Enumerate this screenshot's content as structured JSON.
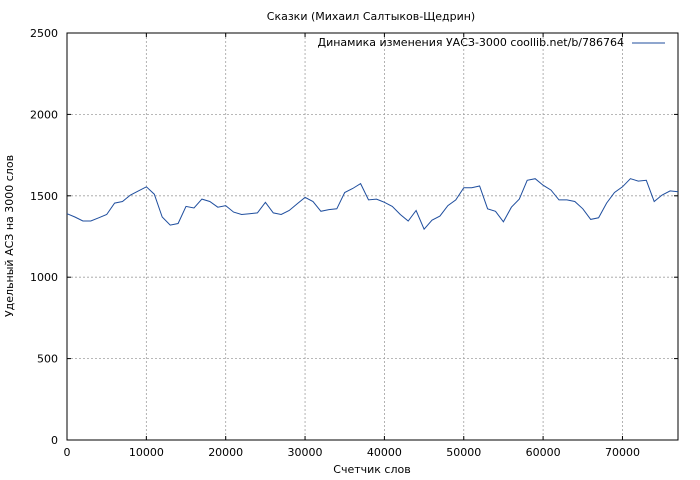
{
  "chart_data": {
    "type": "line",
    "title": "Сказки (Михаил Салтыков-Щедрин)",
    "xlabel": "Счетчик слов",
    "ylabel": "Удельный АСЗ на 3000 слов",
    "xlim": [
      0,
      77000
    ],
    "ylim": [
      0,
      2500
    ],
    "xticks": [
      0,
      10000,
      20000,
      30000,
      40000,
      50000,
      60000,
      70000
    ],
    "yticks": [
      0,
      500,
      1000,
      1500,
      2000,
      2500
    ],
    "grid": true,
    "legend_position": "top-right",
    "series": [
      {
        "name": "Динамика изменения УАСЗ-3000 coollib.net/b/786764",
        "color": "#1f4e9e",
        "x": [
          0,
          1000,
          2000,
          3000,
          4000,
          5000,
          6000,
          7000,
          8000,
          9000,
          10000,
          11000,
          12000,
          13000,
          14000,
          15000,
          16000,
          17000,
          18000,
          19000,
          20000,
          21000,
          22000,
          23000,
          24000,
          25000,
          26000,
          27000,
          28000,
          29000,
          30000,
          31000,
          32000,
          33000,
          34000,
          35000,
          36000,
          37000,
          38000,
          39000,
          40000,
          41000,
          42000,
          43000,
          44000,
          45000,
          46000,
          47000,
          48000,
          49000,
          50000,
          51000,
          52000,
          53000,
          54000,
          55000,
          56000,
          57000,
          58000,
          59000,
          60000,
          61000,
          62000,
          63000,
          64000,
          65000,
          66000,
          67000,
          68000,
          69000,
          70000,
          71000,
          72000,
          73000,
          74000,
          75000,
          76000,
          77000
        ],
        "y": [
          1390,
          1370,
          1345,
          1345,
          1365,
          1385,
          1455,
          1465,
          1505,
          1530,
          1555,
          1510,
          1370,
          1320,
          1330,
          1435,
          1425,
          1480,
          1465,
          1430,
          1440,
          1400,
          1385,
          1390,
          1395,
          1460,
          1395,
          1385,
          1410,
          1450,
          1490,
          1465,
          1405,
          1415,
          1420,
          1520,
          1545,
          1575,
          1475,
          1480,
          1460,
          1435,
          1385,
          1345,
          1410,
          1295,
          1350,
          1375,
          1440,
          1475,
          1550,
          1550,
          1560,
          1420,
          1405,
          1340,
          1430,
          1480,
          1595,
          1605,
          1565,
          1535,
          1475,
          1475,
          1465,
          1420,
          1355,
          1365,
          1455,
          1520,
          1555,
          1605,
          1590,
          1595,
          1465,
          1505,
          1530,
          1525
        ]
      }
    ]
  }
}
